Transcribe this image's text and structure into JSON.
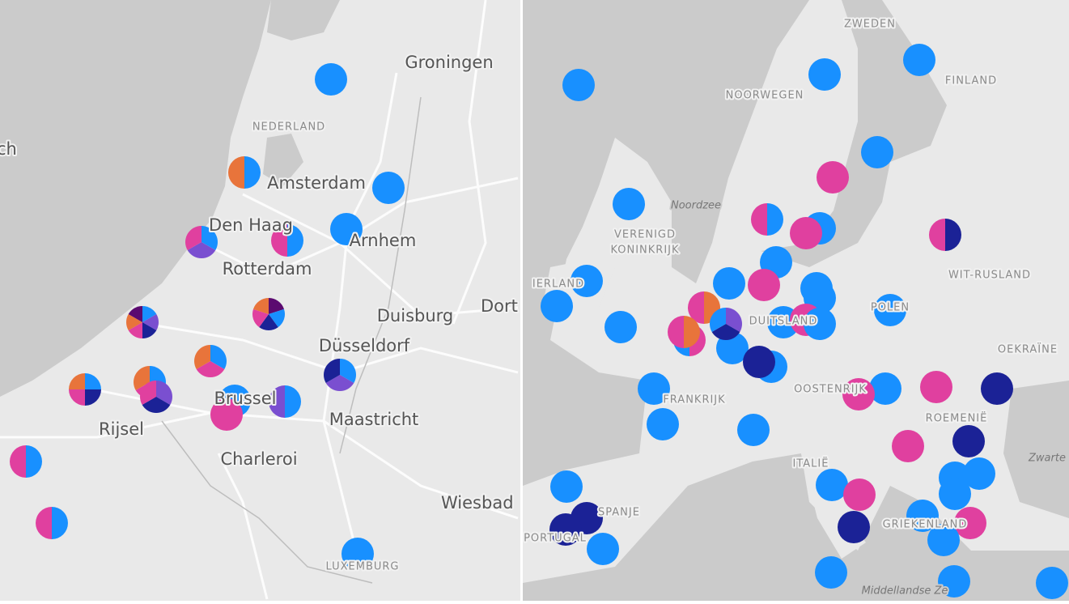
{
  "left_map": {
    "labels": [
      "ch",
      "Groningen",
      "NEDERLAND",
      "Amsterdam",
      "Den Haag",
      "Arnhem",
      "Rotterdam",
      "Duisburg",
      "Dort",
      "Düsseldorf",
      "Brussel",
      "Maastricht",
      "Rijsel",
      "Charleroi",
      "Wiesbad",
      "LUXEMBURG"
    ]
  },
  "right_map": {
    "labels": [
      "ZWEDEN",
      "FINLAND",
      "NOORWEGEN",
      "Noordzee",
      "VERENIGD",
      "KONINKRIJK",
      "IERLAND",
      "POLEN",
      "WIT-RUSLAND",
      "DUITSLAND",
      "OEKRAÏNE",
      "FRANKRIJK",
      "OOSTENRIJK",
      "ROEMENIË",
      "Zwarte",
      "ITALIË",
      "SPANJE",
      "PORTUGAL",
      "GRIEKENLAND",
      "Middellandse Ze"
    ]
  }
}
